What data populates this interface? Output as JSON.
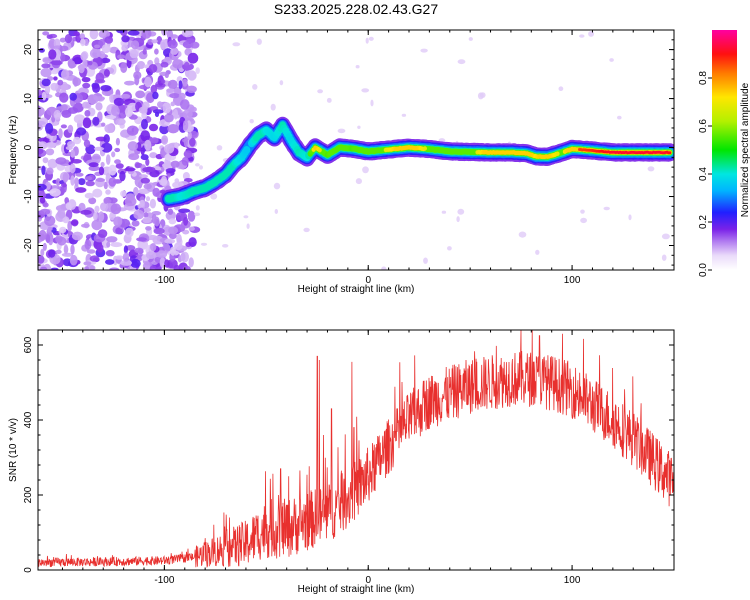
{
  "title": "S233.2025.228.02.43.G27",
  "colors": {
    "snr_line": "#e8302e",
    "axis": "#000000",
    "background": "#ffffff"
  },
  "chart_data": [
    {
      "type": "heatmap",
      "name": "spectrogram",
      "xlabel": "Height of straight line (km)",
      "ylabel": "Frequency (Hz)",
      "xlim": [
        -162,
        150
      ],
      "ylim": [
        -25,
        24
      ],
      "xticks": [
        -100,
        0,
        100
      ],
      "yticks": [
        -20,
        -10,
        0,
        10,
        20
      ],
      "xtick_labels": [
        "-100",
        "0",
        "100"
      ],
      "ytick_labels": [
        "-20",
        "-10",
        "0",
        "10",
        "20"
      ],
      "noise_region_km": [
        -162,
        -85
      ],
      "ridge": [
        {
          "x": -98,
          "f": -10.5,
          "a": 0.45
        },
        {
          "x": -92,
          "f": -10.0,
          "a": 0.4
        },
        {
          "x": -86,
          "f": -9.0,
          "a": 0.42
        },
        {
          "x": -80,
          "f": -8.2,
          "a": 0.45
        },
        {
          "x": -75,
          "f": -7.0,
          "a": 0.42
        },
        {
          "x": -70,
          "f": -5.5,
          "a": 0.45
        },
        {
          "x": -66,
          "f": -3.5,
          "a": 0.42
        },
        {
          "x": -62,
          "f": -2.0,
          "a": 0.38
        },
        {
          "x": -58,
          "f": 0.5,
          "a": 0.35
        },
        {
          "x": -54,
          "f": 2.5,
          "a": 0.45
        },
        {
          "x": -50,
          "f": 3.5,
          "a": 0.4
        },
        {
          "x": -46,
          "f": 2.0,
          "a": 0.38
        },
        {
          "x": -42,
          "f": 4.5,
          "a": 0.42
        },
        {
          "x": -38,
          "f": 1.5,
          "a": 0.38
        },
        {
          "x": -34,
          "f": -1.0,
          "a": 0.42
        },
        {
          "x": -30,
          "f": -2.0,
          "a": 0.4
        },
        {
          "x": -26,
          "f": 0.0,
          "a": 0.78
        },
        {
          "x": -20,
          "f": -1.5,
          "a": 0.55
        },
        {
          "x": -14,
          "f": 0.0,
          "a": 0.6
        },
        {
          "x": -8,
          "f": -0.2,
          "a": 0.55
        },
        {
          "x": 0,
          "f": -0.8,
          "a": 0.6
        },
        {
          "x": 10,
          "f": -0.4,
          "a": 0.7
        },
        {
          "x": 20,
          "f": 0.0,
          "a": 0.82
        },
        {
          "x": 30,
          "f": -0.3,
          "a": 0.65
        },
        {
          "x": 40,
          "f": -0.8,
          "a": 0.58
        },
        {
          "x": 50,
          "f": -0.9,
          "a": 0.62
        },
        {
          "x": 60,
          "f": -1.0,
          "a": 0.8
        },
        {
          "x": 70,
          "f": -1.0,
          "a": 0.85
        },
        {
          "x": 78,
          "f": -1.2,
          "a": 0.8
        },
        {
          "x": 82,
          "f": -1.8,
          "a": 0.72
        },
        {
          "x": 88,
          "f": -1.9,
          "a": 0.78
        },
        {
          "x": 95,
          "f": -1.0,
          "a": 0.65
        },
        {
          "x": 100,
          "f": -0.3,
          "a": 0.85
        },
        {
          "x": 110,
          "f": -0.6,
          "a": 0.88
        },
        {
          "x": 120,
          "f": -1.0,
          "a": 0.92
        },
        {
          "x": 130,
          "f": -1.0,
          "a": 0.95
        },
        {
          "x": 140,
          "f": -1.0,
          "a": 0.95
        },
        {
          "x": 148,
          "f": -1.0,
          "a": 0.9
        }
      ]
    },
    {
      "type": "colorbar",
      "name": "amplitude-colorbar",
      "label": "Normalized spectral amplitude",
      "range": [
        0,
        1
      ],
      "ticks": [
        0.0,
        0.2,
        0.4,
        0.6,
        0.8
      ],
      "tick_labels": [
        "0.0",
        "0.2",
        "0.4",
        "0.6",
        "0.8"
      ]
    },
    {
      "type": "line",
      "name": "snr-plot",
      "xlabel": "Height of straight line (km)",
      "ylabel": "SNR (10 * v/v)",
      "xlim": [
        -162,
        150
      ],
      "ylim": [
        0,
        640
      ],
      "xticks": [
        -100,
        0,
        100
      ],
      "yticks": [
        0,
        200,
        400,
        600
      ],
      "xtick_labels": [
        "-100",
        "0",
        "100"
      ],
      "ytick_labels": [
        "0",
        "200",
        "400",
        "600"
      ],
      "envelope": [
        {
          "x": -162,
          "y": 20
        },
        {
          "x": -130,
          "y": 22
        },
        {
          "x": -100,
          "y": 25
        },
        {
          "x": -85,
          "y": 35
        },
        {
          "x": -75,
          "y": 50
        },
        {
          "x": -60,
          "y": 70
        },
        {
          "x": -50,
          "y": 110
        },
        {
          "x": -40,
          "y": 110
        },
        {
          "x": -30,
          "y": 130
        },
        {
          "x": -20,
          "y": 150
        },
        {
          "x": -10,
          "y": 190
        },
        {
          "x": 0,
          "y": 250
        },
        {
          "x": 10,
          "y": 330
        },
        {
          "x": 20,
          "y": 400
        },
        {
          "x": 30,
          "y": 450
        },
        {
          "x": 40,
          "y": 470
        },
        {
          "x": 50,
          "y": 490
        },
        {
          "x": 60,
          "y": 500
        },
        {
          "x": 70,
          "y": 510
        },
        {
          "x": 80,
          "y": 510
        },
        {
          "x": 90,
          "y": 500
        },
        {
          "x": 100,
          "y": 480
        },
        {
          "x": 110,
          "y": 440
        },
        {
          "x": 120,
          "y": 400
        },
        {
          "x": 130,
          "y": 350
        },
        {
          "x": 140,
          "y": 290
        },
        {
          "x": 150,
          "y": 230
        }
      ],
      "spikes": [
        {
          "x": -80,
          "y": 85
        },
        {
          "x": -68,
          "y": 140
        },
        {
          "x": -44,
          "y": 200
        },
        {
          "x": -43,
          "y": 270
        },
        {
          "x": -39,
          "y": 250
        },
        {
          "x": -25,
          "y": 570
        },
        {
          "x": -24,
          "y": 560
        },
        {
          "x": -22,
          "y": 360
        },
        {
          "x": -18,
          "y": 430
        },
        {
          "x": -8,
          "y": 555
        },
        {
          "x": -7,
          "y": 380
        },
        {
          "x": 75,
          "y": 640
        },
        {
          "x": 84,
          "y": 625
        }
      ]
    }
  ]
}
